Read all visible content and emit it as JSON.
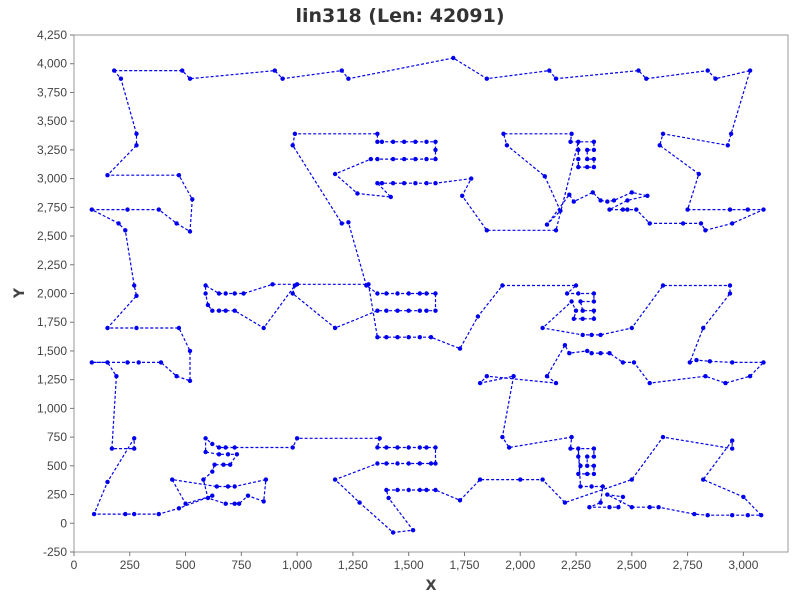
{
  "chart_data": {
    "type": "line",
    "title": "lin318 (Len: 42091)",
    "xlabel": "X",
    "ylabel": "Y",
    "xlim": [
      0,
      3200
    ],
    "ylim": [
      -250,
      4250
    ],
    "xticks": [
      0,
      250,
      500,
      750,
      1000,
      1250,
      1500,
      1750,
      2000,
      2250,
      2500,
      2750,
      3000
    ],
    "xtick_labels": [
      "0",
      "250",
      "500",
      "750",
      "1,000",
      "1,250",
      "1,500",
      "1,750",
      "2,000",
      "2,250",
      "2,500",
      "2,750",
      "3,000"
    ],
    "yticks": [
      -250,
      0,
      250,
      500,
      750,
      1000,
      1250,
      1500,
      1750,
      2000,
      2250,
      2500,
      2750,
      3000,
      3250,
      3500,
      3750,
      4000,
      4250
    ],
    "ytick_labels": [
      "-250",
      "0",
      "250",
      "500",
      "750",
      "1,000",
      "1,250",
      "1,500",
      "1,750",
      "2,000",
      "2,250",
      "2,500",
      "2,750",
      "3,000",
      "3,250",
      "3,500",
      "3,750",
      "4,000",
      "4,250"
    ],
    "grid": false,
    "line_style": "dashed",
    "series": [
      {
        "color": "#0000ee",
        "closed": true,
        "points": [
          [
            180,
            3940
          ],
          [
            485,
            3940
          ],
          [
            520,
            3870
          ],
          [
            900,
            3940
          ],
          [
            935,
            3870
          ],
          [
            1200,
            3940
          ],
          [
            1230,
            3870
          ],
          [
            1700,
            4050
          ],
          [
            1850,
            3870
          ],
          [
            2130,
            3940
          ],
          [
            2160,
            3870
          ],
          [
            2530,
            3940
          ],
          [
            2565,
            3870
          ],
          [
            2840,
            3940
          ],
          [
            2875,
            3870
          ],
          [
            3030,
            3940
          ],
          [
            2945,
            3390
          ],
          [
            2930,
            3290
          ],
          [
            2640,
            3390
          ],
          [
            2625,
            3290
          ],
          [
            2800,
            3040
          ],
          [
            2750,
            2730
          ],
          [
            2940,
            2730
          ],
          [
            3020,
            2730
          ],
          [
            3090,
            2730
          ],
          [
            2950,
            2610
          ],
          [
            2830,
            2550
          ],
          [
            2810,
            2610
          ],
          [
            2730,
            2610
          ],
          [
            2580,
            2610
          ],
          [
            2520,
            2730
          ],
          [
            2480,
            2730
          ],
          [
            2460,
            2730
          ],
          [
            2400,
            2730
          ],
          [
            2480,
            2810
          ],
          [
            2570,
            2850
          ],
          [
            2500,
            2880
          ],
          [
            2420,
            2810
          ],
          [
            2390,
            2800
          ],
          [
            2360,
            2810
          ],
          [
            2325,
            2880
          ],
          [
            2240,
            2800
          ],
          [
            2220,
            2860
          ],
          [
            2120,
            2600
          ],
          [
            2180,
            2720
          ],
          [
            2110,
            3020
          ],
          [
            1940,
            3290
          ],
          [
            1925,
            3390
          ],
          [
            2230,
            3390
          ],
          [
            2225,
            3320
          ],
          [
            2330,
            3320
          ],
          [
            2330,
            3250
          ],
          [
            2300,
            3250
          ],
          [
            2300,
            3170
          ],
          [
            2330,
            3170
          ],
          [
            2330,
            3100
          ],
          [
            2300,
            3100
          ],
          [
            2260,
            3100
          ],
          [
            2260,
            3170
          ],
          [
            2260,
            3250
          ],
          [
            2260,
            3320
          ],
          [
            2160,
            2550
          ],
          [
            1850,
            2550
          ],
          [
            1740,
            2850
          ],
          [
            1780,
            3000
          ],
          [
            1620,
            2960
          ],
          [
            1580,
            2960
          ],
          [
            1530,
            2960
          ],
          [
            1480,
            2960
          ],
          [
            1430,
            2960
          ],
          [
            1380,
            2960
          ],
          [
            1360,
            2960
          ],
          [
            1420,
            2840
          ],
          [
            1270,
            2870
          ],
          [
            1170,
            3040
          ],
          [
            1330,
            3170
          ],
          [
            1360,
            3170
          ],
          [
            1430,
            3170
          ],
          [
            1480,
            3170
          ],
          [
            1530,
            3170
          ],
          [
            1580,
            3170
          ],
          [
            1620,
            3170
          ],
          [
            1620,
            3250
          ],
          [
            1620,
            3320
          ],
          [
            1580,
            3320
          ],
          [
            1530,
            3320
          ],
          [
            1480,
            3320
          ],
          [
            1430,
            3320
          ],
          [
            1380,
            3320
          ],
          [
            1360,
            3320
          ],
          [
            1360,
            3390
          ],
          [
            990,
            3390
          ],
          [
            980,
            3290
          ],
          [
            1200,
            2610
          ],
          [
            1230,
            2620
          ],
          [
            1310,
            2070
          ],
          [
            1360,
            2000
          ],
          [
            1400,
            2000
          ],
          [
            1450,
            2000
          ],
          [
            1500,
            2000
          ],
          [
            1550,
            2000
          ],
          [
            1580,
            2000
          ],
          [
            1620,
            2000
          ],
          [
            1620,
            1850
          ],
          [
            1580,
            1850
          ],
          [
            1550,
            1850
          ],
          [
            1500,
            1850
          ],
          [
            1450,
            1850
          ],
          [
            1400,
            1850
          ],
          [
            1360,
            1850
          ],
          [
            1170,
            1700
          ],
          [
            980,
            2000
          ],
          [
            990,
            2070
          ],
          [
            850,
            1700
          ],
          [
            720,
            1850
          ],
          [
            680,
            1850
          ],
          [
            650,
            1850
          ],
          [
            620,
            1850
          ],
          [
            600,
            1900
          ],
          [
            590,
            2000
          ],
          [
            590,
            2070
          ],
          [
            650,
            2000
          ],
          [
            680,
            2000
          ],
          [
            720,
            2000
          ],
          [
            760,
            2000
          ],
          [
            890,
            2080
          ],
          [
            1000,
            2080
          ],
          [
            1320,
            2080
          ],
          [
            1360,
            1620
          ],
          [
            1400,
            1620
          ],
          [
            1450,
            1620
          ],
          [
            1500,
            1620
          ],
          [
            1550,
            1620
          ],
          [
            1600,
            1620
          ],
          [
            1730,
            1520
          ],
          [
            1810,
            1800
          ],
          [
            1920,
            2070
          ],
          [
            2250,
            2070
          ],
          [
            2210,
            2000
          ],
          [
            2260,
            2000
          ],
          [
            2330,
            2000
          ],
          [
            2330,
            1930
          ],
          [
            2270,
            1930
          ],
          [
            2280,
            1850
          ],
          [
            2330,
            1850
          ],
          [
            2330,
            1780
          ],
          [
            2280,
            1780
          ],
          [
            2240,
            1780
          ],
          [
            2250,
            1850
          ],
          [
            2230,
            1930
          ],
          [
            2100,
            1700
          ],
          [
            2280,
            1640
          ],
          [
            2320,
            1640
          ],
          [
            2360,
            1640
          ],
          [
            2500,
            1700
          ],
          [
            2640,
            2070
          ],
          [
            2940,
            2070
          ],
          [
            2940,
            2000
          ],
          [
            2820,
            1700
          ],
          [
            2760,
            1400
          ],
          [
            2790,
            1420
          ],
          [
            2850,
            1410
          ],
          [
            2950,
            1400
          ],
          [
            3090,
            1400
          ],
          [
            3030,
            1280
          ],
          [
            2920,
            1220
          ],
          [
            2830,
            1280
          ],
          [
            2580,
            1220
          ],
          [
            2510,
            1400
          ],
          [
            2460,
            1400
          ],
          [
            2400,
            1480
          ],
          [
            2360,
            1480
          ],
          [
            2320,
            1480
          ],
          [
            2300,
            1500
          ],
          [
            2220,
            1480
          ],
          [
            2200,
            1550
          ],
          [
            2120,
            1280
          ],
          [
            2160,
            1220
          ],
          [
            1850,
            1280
          ],
          [
            1820,
            1220
          ],
          [
            1970,
            1280
          ],
          [
            1920,
            750
          ],
          [
            1950,
            660
          ],
          [
            2230,
            750
          ],
          [
            2225,
            650
          ],
          [
            2330,
            650
          ],
          [
            2330,
            580
          ],
          [
            2300,
            580
          ],
          [
            2300,
            500
          ],
          [
            2330,
            500
          ],
          [
            2330,
            430
          ],
          [
            2300,
            430
          ],
          [
            2260,
            430
          ],
          [
            2270,
            500
          ],
          [
            2260,
            580
          ],
          [
            2260,
            650
          ],
          [
            2270,
            320
          ],
          [
            2320,
            320
          ],
          [
            2370,
            320
          ],
          [
            2360,
            180
          ],
          [
            2310,
            140
          ],
          [
            2400,
            140
          ],
          [
            2440,
            140
          ],
          [
            2460,
            230
          ],
          [
            2390,
            250
          ],
          [
            2500,
            140
          ],
          [
            2580,
            140
          ],
          [
            2620,
            140
          ],
          [
            2780,
            80
          ],
          [
            2840,
            70
          ],
          [
            2950,
            70
          ],
          [
            3020,
            70
          ],
          [
            3080,
            70
          ],
          [
            3000,
            230
          ],
          [
            2820,
            380
          ],
          [
            2950,
            720
          ],
          [
            2950,
            650
          ],
          [
            2640,
            750
          ],
          [
            2500,
            380
          ],
          [
            2200,
            180
          ],
          [
            2100,
            380
          ],
          [
            2000,
            380
          ],
          [
            1820,
            380
          ],
          [
            1730,
            200
          ],
          [
            1620,
            290
          ],
          [
            1580,
            290
          ],
          [
            1550,
            290
          ],
          [
            1500,
            290
          ],
          [
            1450,
            290
          ],
          [
            1400,
            290
          ],
          [
            1410,
            220
          ],
          [
            1520,
            -60
          ],
          [
            1430,
            -80
          ],
          [
            1280,
            180
          ],
          [
            1170,
            380
          ],
          [
            1360,
            520
          ],
          [
            1400,
            520
          ],
          [
            1450,
            520
          ],
          [
            1500,
            520
          ],
          [
            1550,
            520
          ],
          [
            1600,
            520
          ],
          [
            1620,
            520
          ],
          [
            1620,
            660
          ],
          [
            1580,
            660
          ],
          [
            1550,
            660
          ],
          [
            1500,
            660
          ],
          [
            1450,
            660
          ],
          [
            1400,
            660
          ],
          [
            1360,
            660
          ],
          [
            1370,
            740
          ],
          [
            1000,
            740
          ],
          [
            980,
            660
          ],
          [
            720,
            660
          ],
          [
            680,
            660
          ],
          [
            650,
            660
          ],
          [
            620,
            690
          ],
          [
            590,
            740
          ],
          [
            590,
            620
          ],
          [
            650,
            600
          ],
          [
            690,
            600
          ],
          [
            730,
            600
          ],
          [
            700,
            510
          ],
          [
            670,
            510
          ],
          [
            630,
            510
          ],
          [
            620,
            450
          ],
          [
            580,
            380
          ],
          [
            600,
            220
          ],
          [
            680,
            170
          ],
          [
            720,
            170
          ],
          [
            740,
            170
          ],
          [
            780,
            240
          ],
          [
            850,
            190
          ],
          [
            860,
            380
          ],
          [
            720,
            320
          ],
          [
            690,
            320
          ],
          [
            640,
            320
          ],
          [
            440,
            380
          ],
          [
            500,
            170
          ],
          [
            620,
            240
          ],
          [
            470,
            130
          ],
          [
            380,
            80
          ],
          [
            270,
            80
          ],
          [
            230,
            80
          ],
          [
            90,
            80
          ],
          [
            150,
            360
          ],
          [
            270,
            740
          ],
          [
            270,
            650
          ],
          [
            170,
            650
          ],
          [
            190,
            1280
          ],
          [
            150,
            1400
          ],
          [
            80,
            1400
          ],
          [
            240,
            1400
          ],
          [
            290,
            1400
          ],
          [
            390,
            1400
          ],
          [
            460,
            1280
          ],
          [
            520,
            1240
          ],
          [
            520,
            1500
          ],
          [
            470,
            1700
          ],
          [
            280,
            1700
          ],
          [
            150,
            1700
          ],
          [
            280,
            1980
          ],
          [
            270,
            2070
          ],
          [
            230,
            2550
          ],
          [
            200,
            2610
          ],
          [
            80,
            2730
          ],
          [
            240,
            2730
          ],
          [
            380,
            2730
          ],
          [
            460,
            2610
          ],
          [
            520,
            2540
          ],
          [
            530,
            2820
          ],
          [
            470,
            3030
          ],
          [
            150,
            3030
          ],
          [
            280,
            3290
          ],
          [
            280,
            3390
          ],
          [
            210,
            3870
          ]
        ]
      }
    ]
  }
}
